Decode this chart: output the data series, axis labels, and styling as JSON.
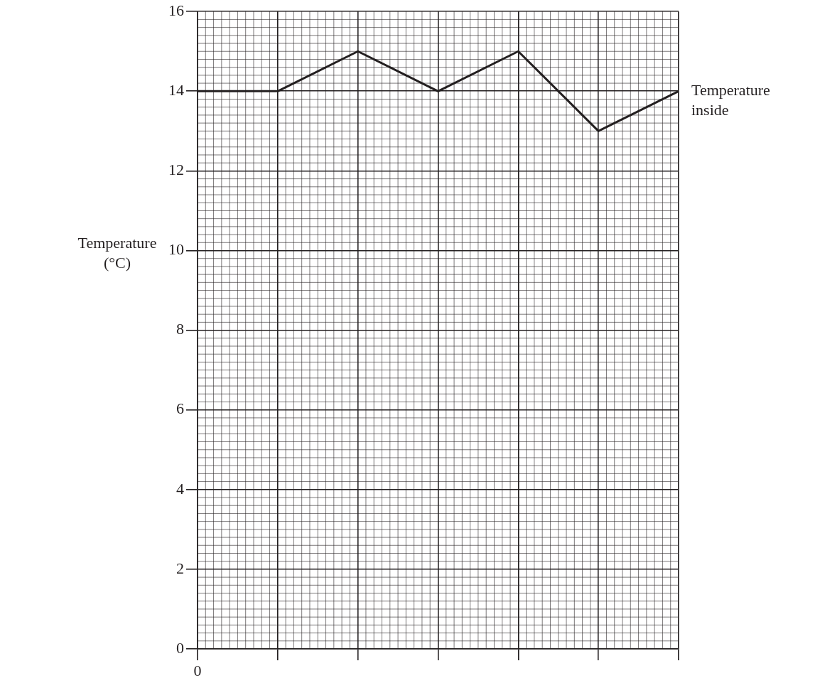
{
  "chart_data": {
    "type": "line",
    "ylabel": "Temperature (°C)",
    "categories": [
      "0",
      null,
      null,
      null,
      null,
      null,
      null
    ],
    "series": [
      {
        "name": "Temperature inside",
        "color": "#231f20",
        "values": [
          14,
          14,
          15,
          14,
          15,
          13,
          14
        ]
      }
    ],
    "ylim": [
      0,
      16
    ],
    "yticks": [
      0,
      2,
      4,
      6,
      8,
      10,
      12,
      14,
      16
    ],
    "grid": true,
    "legend": false,
    "marker": "none",
    "line_style": "solid"
  }
}
